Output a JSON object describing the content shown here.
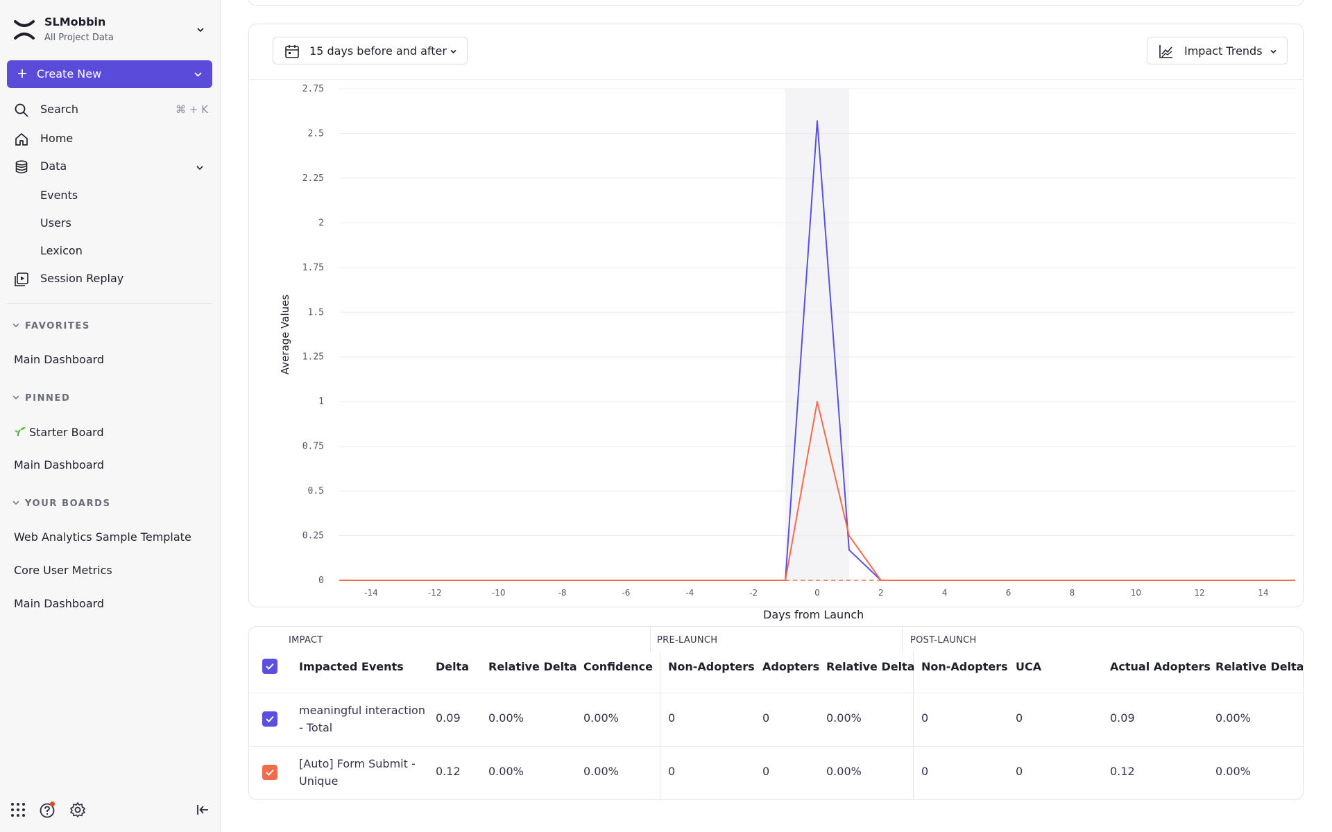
{
  "sidebar": {
    "org_name": "SLMobbin",
    "org_sub": "All Project Data",
    "create_label": "Create New",
    "search_label": "Search",
    "search_shortcut": "⌘ + K",
    "home_label": "Home",
    "data_label": "Data",
    "data_children": [
      "Events",
      "Users",
      "Lexicon"
    ],
    "session_replay_label": "Session Replay",
    "favorites_header": "FAVORITES",
    "favorites": [
      "Main Dashboard"
    ],
    "pinned_header": "PINNED",
    "pinned": [
      "Starter Board",
      "Main Dashboard"
    ],
    "boards_header": "YOUR BOARDS",
    "boards": [
      "Web Analytics Sample Template",
      "Core User Metrics",
      "Main Dashboard"
    ]
  },
  "toolbar": {
    "range_label": "15 days before and after",
    "view_label": "Impact Trends"
  },
  "chart_data": {
    "type": "line",
    "xlabel": "Days from Launch",
    "ylabel": "Average Values",
    "xlim": [
      -15,
      15
    ],
    "ylim": [
      0,
      2.75
    ],
    "x_ticks": [
      -14,
      -12,
      -10,
      -8,
      -6,
      -4,
      -2,
      0,
      2,
      4,
      6,
      8,
      10,
      12,
      14
    ],
    "y_ticks": [
      0,
      0.25,
      0.5,
      0.75,
      1,
      1.25,
      1.5,
      1.75,
      2,
      2.25,
      2.5,
      2.75
    ],
    "y_tick_labels": [
      "0",
      "0.25",
      "0.5",
      "0.75",
      "1",
      "1.25",
      "1.5",
      "1.75",
      "2",
      "2.25",
      "2.5",
      "2.75"
    ],
    "x_tick_labels": [
      "-14",
      "-12",
      "-10",
      "-8",
      "-6",
      "-4",
      "-2",
      "0",
      "2",
      "4",
      "6",
      "8",
      "10",
      "12",
      "14"
    ],
    "highlight_band": [
      -1,
      1
    ],
    "grid": true,
    "series": [
      {
        "color": "#5b4fe0",
        "x": [
          -15,
          -1,
          0,
          1,
          2,
          15
        ],
        "y": [
          0,
          0,
          2.57,
          0.17,
          0,
          0
        ]
      },
      {
        "color": "#f26b4a",
        "x": [
          -15,
          -1,
          0,
          1,
          2,
          15
        ],
        "y": [
          0,
          0,
          1.0,
          0.25,
          0,
          0
        ]
      }
    ]
  },
  "table": {
    "groups": [
      "IMPACT",
      "PRE-LAUNCH",
      "POST-LAUNCH"
    ],
    "headers": [
      "Impacted Events",
      "Delta",
      "Relative Delta",
      "Confidence",
      "Non-Adopters",
      "Adopters",
      "Relative Delta",
      "Non-Adopters",
      "UCA",
      "Actual Adopters",
      "Relative Delta"
    ],
    "rows": [
      {
        "event": "meaningful interaction - Total",
        "color": "#5b4fe0",
        "cells": [
          "0.09",
          "0.00%",
          "0.00%",
          "0",
          "0",
          "0.00%",
          "0",
          "0",
          "0.09",
          "0.00%"
        ]
      },
      {
        "event": "[Auto] Form Submit - Unique",
        "color": "#f26b4a",
        "cells": [
          "0.12",
          "0.00%",
          "0.00%",
          "0",
          "0",
          "0.00%",
          "0",
          "0",
          "0.12",
          "0.00%"
        ]
      }
    ]
  }
}
